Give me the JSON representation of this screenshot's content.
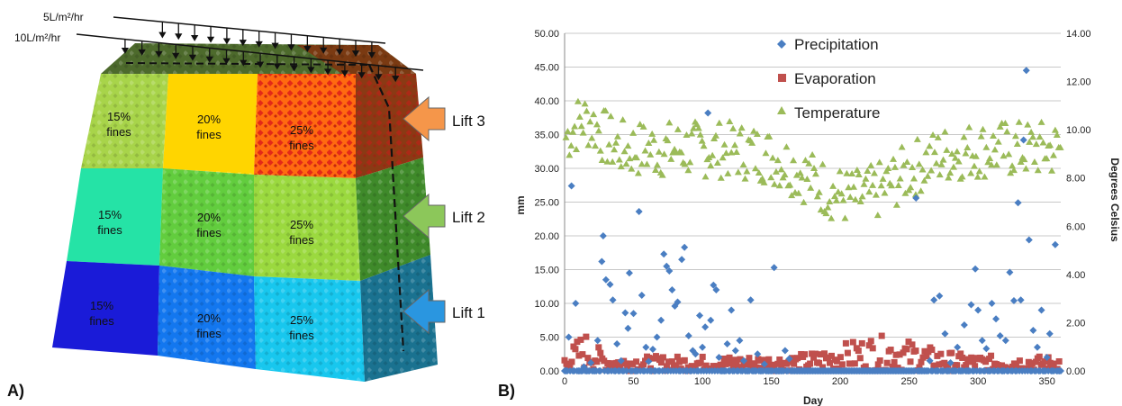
{
  "panel_a": {
    "panel_label": "A)",
    "rain_labels": [
      "5L/m²/hr",
      "10L/m²/hr"
    ],
    "lifts": [
      "Lift 3",
      "Lift 2",
      "Lift 1"
    ],
    "cell_pct": [
      "15%",
      "20%",
      "25%"
    ],
    "cell_word": "fines",
    "colors": {
      "row3": [
        "#a8d44a",
        "#ffd500",
        "#ff6a10"
      ],
      "row2": [
        "#25e3a6",
        "#62cd3e",
        "#9bd93f"
      ],
      "row1": [
        "#1a1bd8",
        "#1377ef",
        "#18c7ee"
      ],
      "side": [
        "#8a3a14",
        "#3f8a2a",
        "#1a7290"
      ],
      "top": "#4d6a2c",
      "arrows": [
        "#f5964a",
        "#8cc75a",
        "#2a96e0"
      ]
    }
  },
  "panel_b": {
    "panel_label": "B)"
  },
  "chart_data": {
    "type": "scatter",
    "xlabel": "Day",
    "ylabel": "mm",
    "y2label": "Degrees Celsius",
    "xlim": [
      0,
      360
    ],
    "xticks": [
      "0",
      "50",
      "100",
      "150",
      "200",
      "250",
      "300",
      "350"
    ],
    "ylim": [
      0,
      50
    ],
    "yticks": [
      "0.00",
      "5.00",
      "10.00",
      "15.00",
      "20.00",
      "25.00",
      "30.00",
      "35.00",
      "40.00",
      "45.00",
      "50.00"
    ],
    "y2lim": [
      0,
      14
    ],
    "y2ticks": [
      "0.00",
      "2.00",
      "4.00",
      "6.00",
      "8.00",
      "10.00",
      "12.00",
      "14.00"
    ],
    "grid": true,
    "legend_position": "top-center",
    "series": [
      {
        "name": "Precipitation",
        "color": "#4a7ec2",
        "marker": "diamond",
        "axis": "left",
        "events": [
          [
            3,
            5.0
          ],
          [
            5,
            27.4
          ],
          [
            8,
            10.0
          ],
          [
            14,
            0.6
          ],
          [
            19,
            1.2
          ],
          [
            24,
            4.5
          ],
          [
            27,
            16.2
          ],
          [
            28,
            20.0
          ],
          [
            30,
            13.5
          ],
          [
            33,
            12.8
          ],
          [
            35,
            10.5
          ],
          [
            38,
            4.0
          ],
          [
            41,
            1.5
          ],
          [
            44,
            8.6
          ],
          [
            46,
            6.3
          ],
          [
            47,
            14.5
          ],
          [
            50,
            8.5
          ],
          [
            54,
            23.6
          ],
          [
            56,
            11.2
          ],
          [
            59,
            3.5
          ],
          [
            61,
            1.4
          ],
          [
            64,
            3.2
          ],
          [
            67,
            5.0
          ],
          [
            70,
            7.5
          ],
          [
            72,
            17.3
          ],
          [
            74,
            15.5
          ],
          [
            76,
            14.8
          ],
          [
            78,
            12.0
          ],
          [
            80,
            9.6
          ],
          [
            82,
            10.2
          ],
          [
            85,
            16.5
          ],
          [
            87,
            18.3
          ],
          [
            90,
            5.2
          ],
          [
            93,
            3.0
          ],
          [
            95,
            2.5
          ],
          [
            98,
            8.2
          ],
          [
            100,
            3.5
          ],
          [
            102,
            6.5
          ],
          [
            104,
            38.2
          ],
          [
            106,
            7.5
          ],
          [
            108,
            12.7
          ],
          [
            110,
            12.0
          ],
          [
            112,
            2.0
          ],
          [
            118,
            4.0
          ],
          [
            121,
            9.0
          ],
          [
            124,
            3.0
          ],
          [
            127,
            4.5
          ],
          [
            130,
            1.5
          ],
          [
            135,
            10.5
          ],
          [
            140,
            2.5
          ],
          [
            145,
            1.0
          ],
          [
            152,
            15.3
          ],
          [
            160,
            3.0
          ],
          [
            163,
            1.8
          ],
          [
            255,
            25.6
          ],
          [
            265,
            1.5
          ],
          [
            268,
            10.5
          ],
          [
            272,
            11.1
          ],
          [
            276,
            5.5
          ],
          [
            280,
            1.2
          ],
          [
            285,
            3.5
          ],
          [
            290,
            6.8
          ],
          [
            295,
            9.8
          ],
          [
            298,
            15.1
          ],
          [
            300,
            9.0
          ],
          [
            303,
            4.5
          ],
          [
            306,
            3.3
          ],
          [
            310,
            10.0
          ],
          [
            313,
            7.7
          ],
          [
            316,
            5.2
          ],
          [
            320,
            4.5
          ],
          [
            323,
            14.6
          ],
          [
            326,
            10.4
          ],
          [
            329,
            24.9
          ],
          [
            331,
            10.5
          ],
          [
            333,
            34.2
          ],
          [
            335,
            44.5
          ],
          [
            337,
            19.4
          ],
          [
            340,
            6.0
          ],
          [
            343,
            3.5
          ],
          [
            346,
            9.0
          ],
          [
            350,
            2.0
          ],
          [
            352,
            5.5
          ],
          [
            356,
            18.7
          ]
        ]
      },
      {
        "name": "Evaporation",
        "color": "#c0504d",
        "marker": "square",
        "axis": "left",
        "note": "daily values 0-8 mm, highest in summer"
      },
      {
        "name": "Temperature",
        "color": "#9bbb59",
        "marker": "triangle",
        "axis": "right",
        "note": "daily values ~6-12.8 °C, minimum near day 170-250"
      }
    ]
  }
}
